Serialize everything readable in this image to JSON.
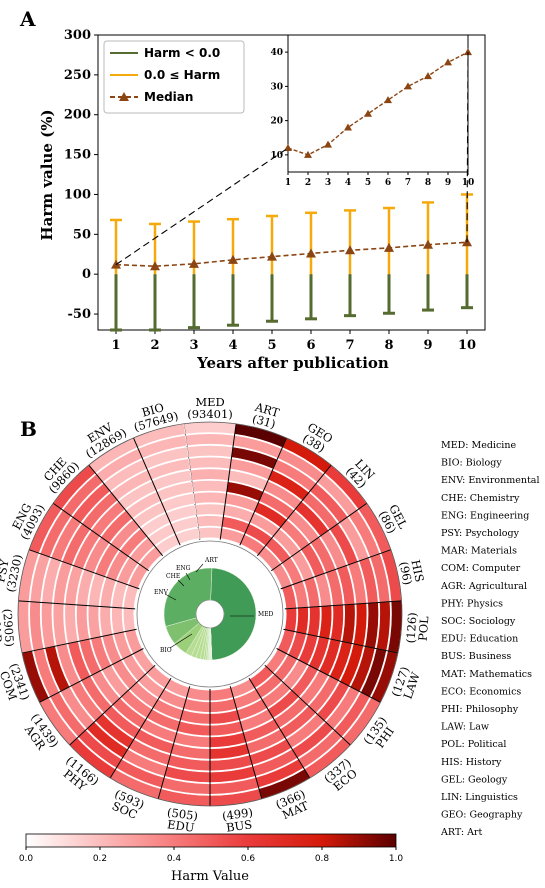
{
  "chart_data": [
    {
      "type": "errorbar-line",
      "panel_label": "A",
      "xlabel": "Years after publication",
      "ylabel": "Harm value (%)",
      "ylim": [
        -70,
        300
      ],
      "yticks": [
        -50,
        0,
        50,
        100,
        150,
        200,
        250,
        300
      ],
      "xticks": [
        1,
        2,
        3,
        4,
        5,
        6,
        7,
        8,
        9,
        10
      ],
      "x": [
        1,
        2,
        3,
        4,
        5,
        6,
        7,
        8,
        9,
        10
      ],
      "legend_position": "top-left",
      "series": [
        {
          "name": "Harm < 0.0",
          "color": "#556b2f",
          "values": [
            -70,
            -70,
            -67,
            -64,
            -59,
            -56,
            -52,
            -49,
            -45,
            -42
          ]
        },
        {
          "name": "0.0 ≤ Harm",
          "color": "#f5a90a",
          "values": [
            68,
            63,
            66,
            69,
            73,
            77,
            80,
            83,
            90,
            100
          ]
        },
        {
          "name": "Median",
          "color": "#8b4513",
          "values": [
            12,
            10,
            13,
            18,
            22,
            26,
            30,
            33,
            37,
            40
          ]
        }
      ],
      "inset": {
        "x": [
          1,
          2,
          3,
          4,
          5,
          6,
          7,
          8,
          9,
          10
        ],
        "xticks": [
          1,
          2,
          3,
          4,
          5,
          6,
          7,
          8,
          9,
          10
        ],
        "yticks": [
          10,
          20,
          30,
          40
        ],
        "ylim": [
          5,
          45
        ],
        "values": [
          12,
          10,
          13,
          18,
          22,
          26,
          30,
          33,
          37,
          40
        ]
      }
    },
    {
      "type": "radial-heatmap",
      "panel_label": "B",
      "colorbar_label": "Harm Value",
      "colorbar_ticks": [
        "0.0",
        "0.2",
        "0.4",
        "0.6",
        "0.8",
        "1.0"
      ],
      "colorscale": [
        "#ffffff",
        "#fcbcbc",
        "#f77b7b",
        "#ea3b3b",
        "#d41a0a",
        "#5a0000"
      ],
      "rings": 10,
      "categories": [
        {
          "code": "MED",
          "count": "(93401)",
          "full": "Medicine",
          "values": [
            0.15,
            0.22,
            0.18,
            0.2,
            0.24,
            0.2,
            0.22,
            0.18,
            0.2,
            0.18
          ]
        },
        {
          "code": "ART",
          "count": "(31)",
          "full": "Art",
          "values": [
            1.0,
            0.3,
            0.95,
            0.3,
            0.2,
            0.9,
            0.3,
            0.25,
            0.5,
            0.3
          ]
        },
        {
          "code": "GEO",
          "count": "(38)",
          "full": "Geography",
          "values": [
            0.8,
            0.35,
            0.4,
            0.75,
            0.35,
            0.45,
            0.7,
            0.3,
            0.55,
            0.4
          ]
        },
        {
          "code": "LIN",
          "count": "(42)",
          "full": "Linguistics",
          "values": [
            0.6,
            0.3,
            0.5,
            0.45,
            0.65,
            0.35,
            0.4,
            0.3,
            0.5,
            0.35
          ]
        },
        {
          "code": "GEL",
          "count": "(86)",
          "full": "Geology",
          "values": [
            0.5,
            0.4,
            0.3,
            0.55,
            0.35,
            0.45,
            0.5,
            0.3,
            0.4,
            0.35
          ]
        },
        {
          "code": "HIS",
          "count": "(96)",
          "full": "History",
          "values": [
            0.55,
            0.45,
            0.5,
            0.4,
            0.5,
            0.45,
            0.35,
            0.45,
            0.4,
            0.5
          ]
        },
        {
          "code": "POL",
          "count": "(126)",
          "full": "Political",
          "values": [
            0.95,
            0.85,
            0.9,
            0.8,
            0.85,
            0.7,
            0.75,
            0.65,
            0.7,
            0.6
          ]
        },
        {
          "code": "LAW",
          "count": "(127)",
          "full": "Law",
          "values": [
            0.9,
            0.95,
            0.85,
            0.8,
            0.75,
            0.7,
            0.65,
            0.6,
            0.55,
            0.5
          ]
        },
        {
          "code": "PHI",
          "count": "(135)",
          "full": "Philosophy",
          "values": [
            0.45,
            0.5,
            0.4,
            0.55,
            0.45,
            0.4,
            0.5,
            0.35,
            0.45,
            0.4
          ]
        },
        {
          "code": "ECO",
          "count": "(337)",
          "full": "Economics",
          "values": [
            0.5,
            0.45,
            0.55,
            0.4,
            0.5,
            0.45,
            0.55,
            0.4,
            0.45,
            0.5
          ]
        },
        {
          "code": "MAT",
          "count": "(366)",
          "full": "Mathematics",
          "values": [
            0.95,
            0.6,
            0.5,
            0.55,
            0.45,
            0.5,
            0.4,
            0.45,
            0.4,
            0.35
          ]
        },
        {
          "code": "BUS",
          "count": "(499)",
          "full": "Business",
          "values": [
            0.55,
            0.5,
            0.6,
            0.55,
            0.65,
            0.6,
            0.5,
            0.55,
            0.45,
            0.4
          ]
        },
        {
          "code": "EDU",
          "count": "(505)",
          "full": "Education",
          "values": [
            0.5,
            0.45,
            0.55,
            0.5,
            0.45,
            0.4,
            0.5,
            0.45,
            0.4,
            0.35
          ]
        },
        {
          "code": "SOC",
          "count": "(593)",
          "full": "Sociology",
          "values": [
            0.45,
            0.5,
            0.4,
            0.45,
            0.5,
            0.4,
            0.45,
            0.4,
            0.35,
            0.3
          ]
        },
        {
          "code": "PHY",
          "count": "(1166)",
          "full": "Physics",
          "values": [
            0.6,
            0.55,
            0.7,
            0.65,
            0.5,
            0.45,
            0.4,
            0.35,
            0.3,
            0.3
          ]
        },
        {
          "code": "AGR",
          "count": "(1439)",
          "full": "Agricultural",
          "values": [
            0.4,
            0.45,
            0.35,
            0.4,
            0.45,
            0.35,
            0.3,
            0.35,
            0.3,
            0.28
          ]
        },
        {
          "code": "COM",
          "count": "(2341)",
          "full": "Computer",
          "values": [
            0.9,
            0.4,
            0.85,
            0.35,
            0.5,
            0.45,
            0.4,
            0.35,
            0.3,
            0.3
          ]
        },
        {
          "code": "MAR",
          "count": "(2905)",
          "full": "Materials",
          "values": [
            0.3,
            0.35,
            0.3,
            0.28,
            0.25,
            0.3,
            0.28,
            0.25,
            0.22,
            0.2
          ]
        },
        {
          "code": "PSY",
          "count": "(3230)",
          "full": "Psychology",
          "values": [
            0.3,
            0.28,
            0.25,
            0.3,
            0.28,
            0.25,
            0.22,
            0.25,
            0.2,
            0.2
          ]
        },
        {
          "code": "ENG",
          "count": "(4093)",
          "full": "Engineering",
          "values": [
            0.5,
            0.45,
            0.4,
            0.45,
            0.4,
            0.35,
            0.4,
            0.35,
            0.3,
            0.3
          ]
        },
        {
          "code": "CHE",
          "count": "(9860)",
          "full": "Chemistry",
          "values": [
            0.55,
            0.45,
            0.5,
            0.45,
            0.4,
            0.45,
            0.35,
            0.4,
            0.3,
            0.3
          ]
        },
        {
          "code": "ENV",
          "count": "(12869)",
          "full": "Environmental",
          "values": [
            0.22,
            0.25,
            0.2,
            0.22,
            0.18,
            0.2,
            0.18,
            0.15,
            0.16,
            0.15
          ]
        },
        {
          "code": "BIO",
          "count": "(57649)",
          "full": "Biology",
          "values": [
            0.2,
            0.22,
            0.18,
            0.2,
            0.17,
            0.18,
            0.16,
            0.15,
            0.15,
            0.14
          ]
        }
      ],
      "pie": {
        "labels": [
          "MED",
          "BIO",
          "ENV",
          "CHE",
          "ENG",
          "ART"
        ],
        "color": "#3d9b55"
      }
    }
  ]
}
